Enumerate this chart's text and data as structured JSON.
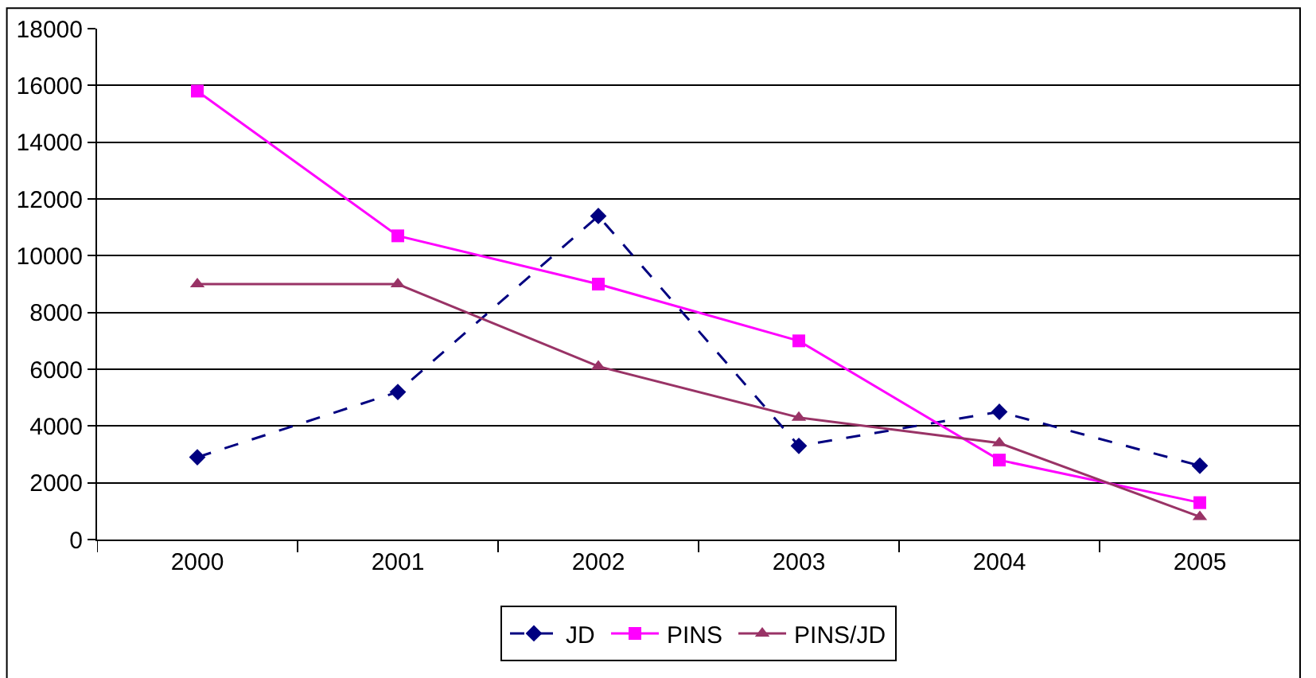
{
  "chart_data": {
    "type": "line",
    "categories": [
      "2000",
      "2001",
      "2002",
      "2003",
      "2004",
      "2005"
    ],
    "series": [
      {
        "name": "JD",
        "color": "#000080",
        "values": [
          2900,
          5200,
          11400,
          3300,
          4500,
          2600
        ],
        "marker": "diamond",
        "line_style": "dashed"
      },
      {
        "name": "PINS",
        "color": "#ff00ff",
        "values": [
          15800,
          10700,
          9000,
          7000,
          2800,
          1300
        ],
        "marker": "square",
        "line_style": "solid"
      },
      {
        "name": "PINS/JD",
        "color": "#993366",
        "values": [
          9000,
          9000,
          6100,
          4300,
          3400,
          800
        ],
        "marker": "triangle",
        "line_style": "solid"
      }
    ],
    "ylim": [
      0,
      18000
    ],
    "yticks": [
      0,
      2000,
      4000,
      6000,
      8000,
      10000,
      12000,
      14000,
      16000,
      18000
    ],
    "grid": "y",
    "legend": "bottom"
  }
}
